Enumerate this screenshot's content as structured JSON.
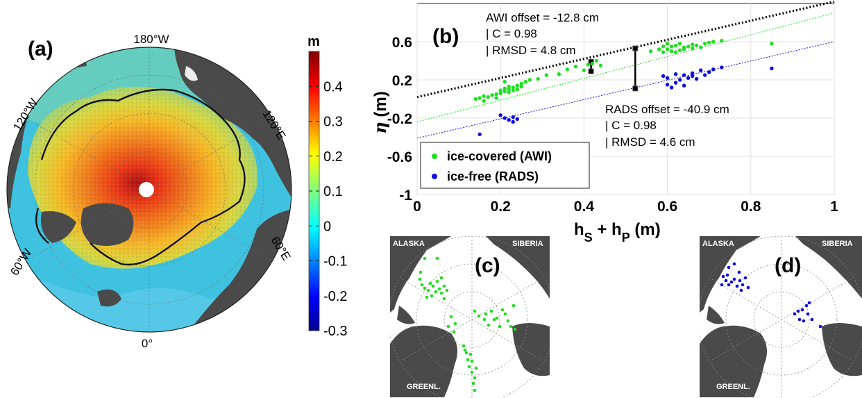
{
  "panels": {
    "a": "(a)",
    "b": "(b)",
    "c": "(c)",
    "d": "(d)"
  },
  "map_a": {
    "lon_labels": {
      "lon180w": "180°W",
      "lon120w": "120°W",
      "lon120e": "120°E",
      "lon60w": "60°W",
      "lon60e": "60°E",
      "lon0": "0°"
    },
    "colorbar": {
      "unit": "m",
      "ticks": [
        "0.4",
        "0.3",
        "0.2",
        "0.1",
        "0",
        "-0.1",
        "-0.2",
        "-0.3"
      ],
      "range": [
        -0.3,
        0.5
      ],
      "colormap": "jet"
    }
  },
  "inset_maps": {
    "alaska": "ALASKA",
    "siberia": "SIBERIA",
    "greenland": "GREENL."
  },
  "annotations": {
    "awi": [
      "AWI offset = -12.8 cm",
      "| C = 0.98",
      "| RMSD = 4.8 cm"
    ],
    "rads": [
      "RADS offset = -40.9 cm",
      "| C = 0.98",
      "| RMSD = 4.6 cm"
    ]
  },
  "colors": {
    "awi": "#1ee01e",
    "rads": "#0a0ae6",
    "land": "#4a4a4a"
  },
  "chart_data": {
    "type": "scatter",
    "xlabel": "h_S + h_P (m)",
    "ylabel": "η (m)",
    "xlim": [
      0,
      1
    ],
    "ylim": [
      -1,
      1
    ],
    "xticks": [
      "0",
      "0.2",
      "0.4",
      "0.6",
      "0.8",
      "1"
    ],
    "yticks": [
      "0.6",
      "0.2",
      "-0.2",
      "-0.6",
      "-1"
    ],
    "ytick_values": [
      0.6,
      0.2,
      -0.2,
      -0.6,
      -1
    ],
    "grid": true,
    "legend_position": "bottom-left",
    "series": [
      {
        "name": "ice-covered (AWI)",
        "color": "#1ee01e",
        "x": [
          0.14,
          0.15,
          0.16,
          0.16,
          0.17,
          0.18,
          0.19,
          0.19,
          0.2,
          0.2,
          0.21,
          0.21,
          0.21,
          0.22,
          0.22,
          0.22,
          0.23,
          0.23,
          0.24,
          0.24,
          0.25,
          0.25,
          0.26,
          0.27,
          0.29,
          0.31,
          0.34,
          0.36,
          0.38,
          0.4,
          0.41,
          0.42,
          0.43,
          0.44,
          0.56,
          0.58,
          0.59,
          0.59,
          0.6,
          0.6,
          0.61,
          0.61,
          0.62,
          0.62,
          0.63,
          0.63,
          0.64,
          0.64,
          0.65,
          0.66,
          0.66,
          0.67,
          0.68,
          0.69,
          0.7,
          0.71,
          0.73,
          0.85
        ],
        "y": [
          0.0,
          0.01,
          -0.02,
          0.03,
          0.02,
          0.04,
          0.01,
          0.05,
          0.06,
          0.09,
          0.08,
          0.11,
          0.18,
          0.07,
          0.1,
          0.13,
          0.09,
          0.12,
          0.1,
          0.14,
          0.13,
          0.16,
          0.18,
          0.2,
          0.21,
          0.25,
          0.26,
          0.31,
          0.34,
          0.3,
          0.36,
          0.37,
          0.4,
          0.35,
          0.5,
          0.52,
          0.49,
          0.55,
          0.52,
          0.58,
          0.5,
          0.55,
          0.49,
          0.56,
          0.51,
          0.58,
          0.52,
          0.54,
          0.55,
          0.53,
          0.57,
          0.56,
          0.54,
          0.58,
          0.59,
          0.6,
          0.61,
          0.58
        ]
      },
      {
        "name": "ice-free (RADS)",
        "color": "#0a0ae6",
        "x": [
          0.15,
          0.2,
          0.21,
          0.22,
          0.23,
          0.23,
          0.24,
          0.59,
          0.6,
          0.6,
          0.61,
          0.62,
          0.62,
          0.63,
          0.64,
          0.64,
          0.65,
          0.66,
          0.66,
          0.67,
          0.68,
          0.69,
          0.7,
          0.71,
          0.73,
          0.85
        ],
        "y": [
          -0.37,
          -0.17,
          -0.2,
          -0.22,
          -0.24,
          -0.19,
          -0.21,
          0.24,
          0.15,
          0.22,
          0.12,
          0.17,
          0.26,
          0.2,
          0.25,
          0.14,
          0.22,
          0.24,
          0.27,
          0.21,
          0.3,
          0.25,
          0.28,
          0.31,
          0.33,
          0.32
        ]
      }
    ],
    "fit_lines": [
      {
        "label": "reference",
        "style": "black dotted",
        "x": [
          0,
          1
        ],
        "y": [
          0.02,
          1.02
        ]
      },
      {
        "label": "AWI fit",
        "style": "green dotted",
        "x": [
          0,
          1
        ],
        "y": [
          -0.24,
          0.9
        ]
      },
      {
        "label": "RADS fit",
        "style": "blue dotted",
        "x": [
          0,
          1
        ],
        "y": [
          -0.41,
          0.6
        ]
      }
    ],
    "offset_bars": [
      {
        "x": 0.417,
        "y_top": 0.39,
        "y_bottom": 0.29
      },
      {
        "x": 0.523,
        "y_top": 0.53,
        "y_bottom": 0.11
      }
    ]
  }
}
